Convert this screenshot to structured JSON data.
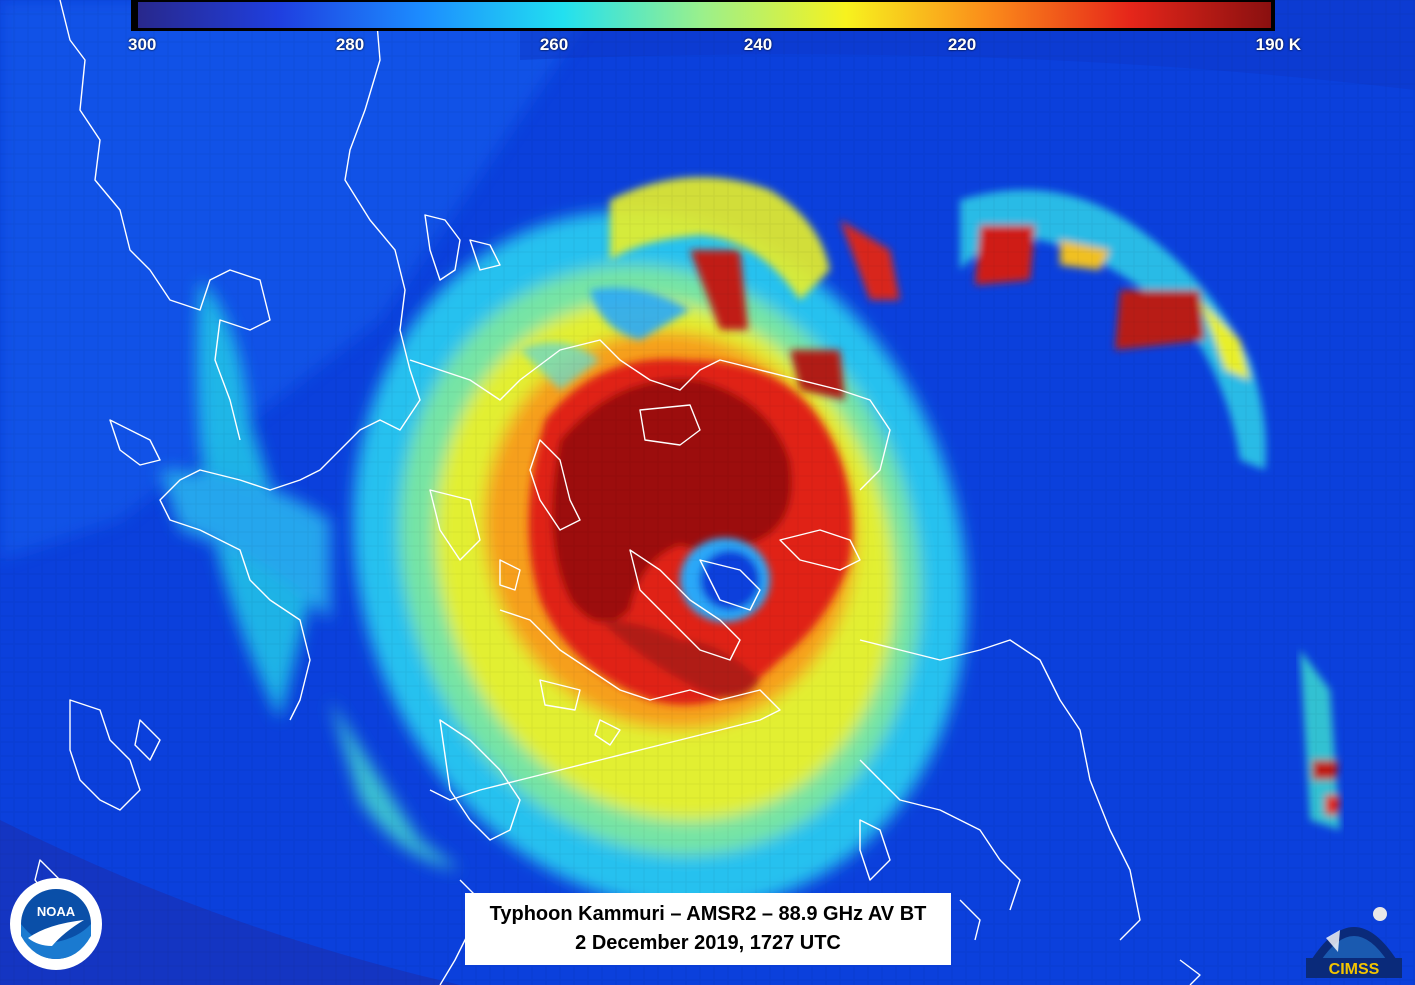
{
  "colorbar": {
    "ticks": [
      "300",
      "280",
      "260",
      "240",
      "220",
      "190 K"
    ],
    "tick_values": [
      300,
      280,
      260,
      240,
      220,
      190
    ],
    "range": [
      300,
      190
    ],
    "unit": "K",
    "colors": [
      "#28288c",
      "#1f3fe0",
      "#1c8cff",
      "#22e0f0",
      "#9cf08a",
      "#f7f21e",
      "#fb8c1a",
      "#e6261a",
      "#8a1010"
    ]
  },
  "caption": {
    "line1": "Typhoon Kammuri – AMSR2 – 88.9 GHz AV BT",
    "line2": "2 December 2019, 1727 UTC"
  },
  "logos": {
    "noaa": "NOAA",
    "cimss": "CIMSS"
  }
}
